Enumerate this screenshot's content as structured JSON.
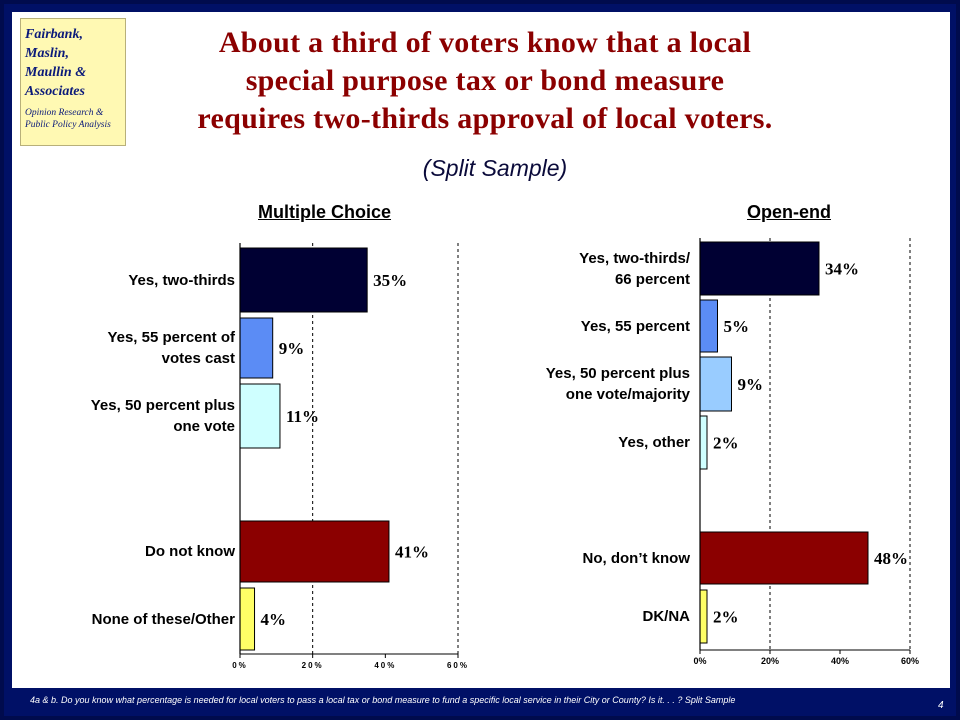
{
  "logo": {
    "name": "Fairbank,\nMaslin,\nMaullin &\nAssociates",
    "tagline": "Opinion Research &\nPublic Policy Analysis"
  },
  "title": "About a third of voters know that a local\nspecial purpose tax or bond measure\nrequires two-thirds approval of local voters.",
  "subtitle": "(Split Sample)",
  "chart_data": [
    {
      "type": "bar",
      "orientation": "horizontal",
      "title": "Multiple Choice",
      "categories": [
        "Yes, two-thirds",
        "Yes, 55 percent of\nvotes cast",
        "Yes, 50 percent plus\none vote",
        "Do not know",
        "None of these/Other"
      ],
      "values": [
        35,
        9,
        11,
        41,
        4
      ],
      "value_labels": [
        "35%",
        "9%",
        "11%",
        "41%",
        "4%"
      ],
      "colors": [
        "#000033",
        "#5b8cf5",
        "#cfffff",
        "#8b0000",
        "#ffff66"
      ],
      "xlim": [
        0,
        60
      ],
      "xticks": [
        "0%",
        "20%",
        "40%",
        "60%"
      ],
      "grid": "dashed vertical at 20% and 60%"
    },
    {
      "type": "bar",
      "orientation": "horizontal",
      "title": "Open-end",
      "categories": [
        "Yes, two-thirds/\n66 percent",
        "Yes, 55 percent",
        "Yes, 50 percent plus\none vote/majority",
        "Yes, other",
        "No, don’t know",
        "DK/NA"
      ],
      "values": [
        34,
        5,
        9,
        2,
        48,
        2
      ],
      "value_labels": [
        "34%",
        "5%",
        "9%",
        "2%",
        "48%",
        "2%"
      ],
      "colors": [
        "#000033",
        "#5b8cf5",
        "#99ccff",
        "#cfffff",
        "#8b0000",
        "#ffff66"
      ],
      "xlim": [
        0,
        60
      ],
      "xticks": [
        "0%",
        "20%",
        "40%",
        "60%"
      ],
      "grid": "dashed vertical at 20% and 60%"
    }
  ],
  "footnote": "4a & b. Do you know what percentage is needed for local voters to pass a local tax or bond measure to fund a specific local service in their City or County? Is it. . .  ?  Split Sample",
  "page_number": "4"
}
